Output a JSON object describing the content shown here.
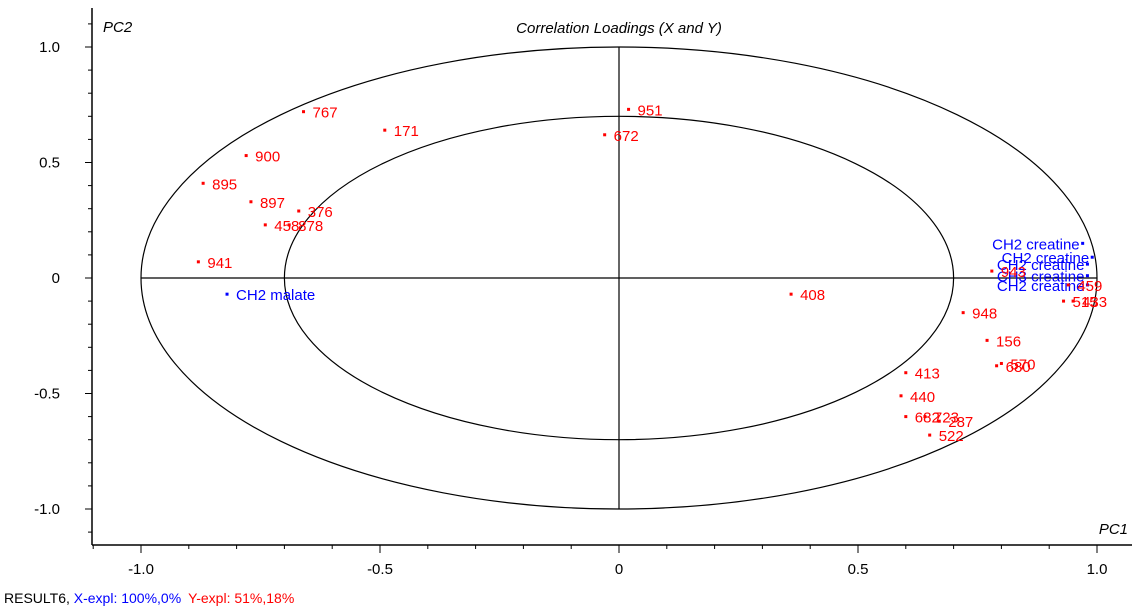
{
  "chart_data": {
    "type": "scatter",
    "title": "Correlation Loadings (X and Y)",
    "xlabel": "PC1",
    "ylabel": "PC2",
    "xlim": [
      -1.1,
      1.1
    ],
    "ylim": [
      -1.18,
      1.18
    ],
    "xticks": [
      -1.0,
      -0.5,
      0,
      0.5,
      1.0
    ],
    "xtick_labels": [
      "-1.0",
      "-0.5",
      "0",
      "0.5",
      "1.0"
    ],
    "yticks": [
      1.0,
      0.5,
      0,
      -0.5,
      -1.0
    ],
    "ytick_labels": [
      "1.0",
      "0.5",
      "0",
      "-0.5",
      "-1.0"
    ],
    "circles": [
      1.0,
      0.7
    ],
    "grid": false,
    "colors": {
      "x_variables": "#0000ff",
      "y_variables": "#ff0000"
    },
    "series": [
      {
        "color": "#0000ff",
        "points": [
          {
            "label": "CH2 malate",
            "x": -0.82,
            "y": -0.07
          },
          {
            "label": "CH2 creatine",
            "x": 0.97,
            "y": 0.15
          },
          {
            "label": "CH2 creatine",
            "x": 0.99,
            "y": 0.09
          },
          {
            "label": "CH2 creatine",
            "x": 0.98,
            "y": 0.06
          },
          {
            "label": "CH3 creatine",
            "x": 0.98,
            "y": 0.01
          },
          {
            "label": "CH2 creatine",
            "x": 0.98,
            "y": -0.03
          }
        ]
      },
      {
        "color": "#ff0000",
        "points": [
          {
            "label": "767",
            "x": -0.66,
            "y": 0.72
          },
          {
            "label": "171",
            "x": -0.49,
            "y": 0.64
          },
          {
            "label": "900",
            "x": -0.78,
            "y": 0.53
          },
          {
            "label": "895",
            "x": -0.87,
            "y": 0.41
          },
          {
            "label": "897",
            "x": -0.77,
            "y": 0.33
          },
          {
            "label": "376",
            "x": -0.67,
            "y": 0.29
          },
          {
            "label": "458",
            "x": -0.74,
            "y": 0.23
          },
          {
            "label": "878",
            "x": -0.69,
            "y": 0.23
          },
          {
            "label": "941",
            "x": -0.88,
            "y": 0.07
          },
          {
            "label": "951",
            "x": 0.02,
            "y": 0.73
          },
          {
            "label": "672",
            "x": -0.03,
            "y": 0.62
          },
          {
            "label": "408",
            "x": 0.36,
            "y": -0.07
          },
          {
            "label": "943",
            "x": 0.78,
            "y": 0.03
          },
          {
            "label": "459",
            "x": 0.94,
            "y": -0.03
          },
          {
            "label": "515",
            "x": 0.93,
            "y": -0.1
          },
          {
            "label": "433",
            "x": 0.95,
            "y": -0.1
          },
          {
            "label": "948",
            "x": 0.72,
            "y": -0.15
          },
          {
            "label": "156",
            "x": 0.77,
            "y": -0.27
          },
          {
            "label": "570",
            "x": 0.8,
            "y": -0.37
          },
          {
            "label": "680",
            "x": 0.79,
            "y": -0.38
          },
          {
            "label": "413",
            "x": 0.6,
            "y": -0.41
          },
          {
            "label": "440",
            "x": 0.59,
            "y": -0.51
          },
          {
            "label": "682",
            "x": 0.6,
            "y": -0.6
          },
          {
            "label": "723",
            "x": 0.64,
            "y": -0.6
          },
          {
            "label": "287",
            "x": 0.67,
            "y": -0.62
          },
          {
            "label": "522",
            "x": 0.65,
            "y": -0.68
          }
        ]
      }
    ]
  },
  "footer": {
    "result": "RESULT6, ",
    "x_expl": "X-expl: 100%,0%",
    "y_expl": "Y-expl: 51%,18%"
  }
}
